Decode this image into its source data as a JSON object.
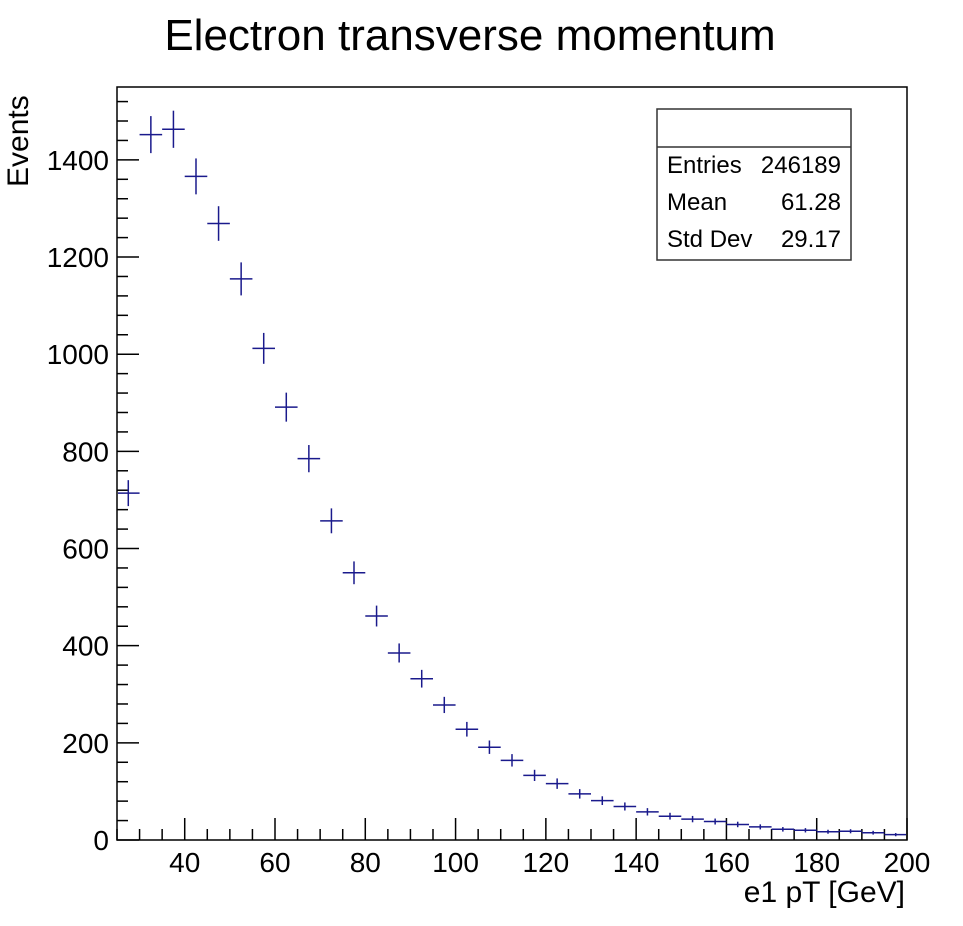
{
  "chart_data": {
    "type": "scatter",
    "title": "Electron transverse momentum",
    "xlabel": "e1 pT [GeV]",
    "ylabel": "Events",
    "xlim": [
      25,
      200
    ],
    "ylim": [
      0,
      1550
    ],
    "bin_width": 5,
    "x_ticks": [
      40,
      60,
      80,
      100,
      120,
      140,
      160,
      180,
      200
    ],
    "y_ticks": [
      0,
      200,
      400,
      600,
      800,
      1000,
      1200,
      1400
    ],
    "marker_color": "#1a1a8c",
    "grid": false,
    "legend": "top-right",
    "series": [
      {
        "x": [
          27.5,
          32.5,
          37.5,
          42.5,
          47.5,
          52.5,
          57.5,
          62.5,
          67.5,
          72.5,
          77.5,
          82.5,
          87.5,
          92.5,
          97.5,
          102.5,
          107.5,
          112.5,
          117.5,
          122.5,
          127.5,
          132.5,
          137.5,
          142.5,
          147.5,
          152.5,
          157.5,
          162.5,
          167.5,
          172.5,
          177.5,
          182.5,
          187.5,
          192.5,
          197.5
        ],
        "values": [
          714,
          1452,
          1463,
          1366,
          1269,
          1155,
          1012,
          891,
          785,
          657,
          550,
          461,
          385,
          332,
          278,
          228,
          191,
          164,
          133,
          116,
          95,
          81,
          69,
          58,
          49,
          43,
          38,
          32,
          27,
          22,
          20,
          17,
          18,
          15,
          11
        ]
      }
    ]
  },
  "stats": {
    "rows": [
      {
        "label": "Entries",
        "value": "246189"
      },
      {
        "label": "Mean",
        "value": "61.28"
      },
      {
        "label": "Std Dev",
        "value": "29.17"
      }
    ]
  }
}
